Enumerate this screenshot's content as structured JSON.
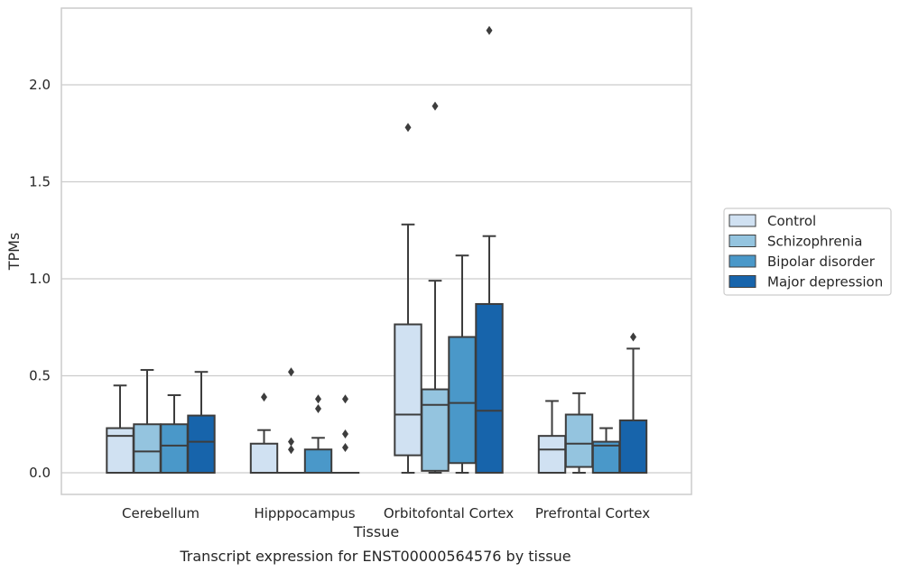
{
  "caption": "Transcript expression for ENST00000564576 by tissue",
  "chart_data": {
    "type": "box",
    "xlabel": "Tissue",
    "ylabel": "TPMs",
    "ylim": [
      -0.11,
      2.41
    ],
    "yticks": [
      0.0,
      0.5,
      1.0,
      1.5,
      2.0
    ],
    "ytick_labels": [
      "0.0",
      "0.5",
      "1.0",
      "1.5",
      "2.0"
    ],
    "grid": "horizontal",
    "legend_position": "right",
    "categories": [
      "Cerebellum",
      "Hipppocampus",
      "Orbitofontal Cortex",
      "Prefrontal Cortex"
    ],
    "series": [
      {
        "name": "Control",
        "color": "#d0e1f2",
        "boxes": [
          {
            "whislo": 0.0,
            "q1": 0.0,
            "med": 0.19,
            "q3": 0.23,
            "whishi": 0.45,
            "fliers": []
          },
          {
            "whislo": 0.0,
            "q1": 0.0,
            "med": 0.0,
            "q3": 0.15,
            "whishi": 0.22,
            "fliers": [
              0.39
            ]
          },
          {
            "whislo": 0.0,
            "q1": 0.09,
            "med": 0.3,
            "q3": 0.765,
            "whishi": 1.28,
            "fliers": [
              1.78
            ]
          },
          {
            "whislo": 0.0,
            "q1": 0.0,
            "med": 0.12,
            "q3": 0.19,
            "whishi": 0.37,
            "fliers": []
          }
        ]
      },
      {
        "name": "Schizophrenia",
        "color": "#94c4df",
        "boxes": [
          {
            "whislo": 0.0,
            "q1": 0.0,
            "med": 0.11,
            "q3": 0.25,
            "whishi": 0.53,
            "fliers": []
          },
          {
            "whislo": 0.0,
            "q1": 0.0,
            "med": 0.0,
            "q3": 0.0,
            "whishi": 0.0,
            "fliers": [
              0.12,
              0.16,
              0.52
            ]
          },
          {
            "whislo": 0.0,
            "q1": 0.01,
            "med": 0.35,
            "q3": 0.43,
            "whishi": 0.99,
            "fliers": [
              1.89
            ]
          },
          {
            "whislo": 0.0,
            "q1": 0.03,
            "med": 0.15,
            "q3": 0.3,
            "whishi": 0.41,
            "fliers": []
          }
        ]
      },
      {
        "name": "Bipolar disorder",
        "color": "#4a98c9",
        "boxes": [
          {
            "whislo": 0.0,
            "q1": 0.0,
            "med": 0.14,
            "q3": 0.25,
            "whishi": 0.4,
            "fliers": []
          },
          {
            "whislo": 0.0,
            "q1": 0.0,
            "med": 0.0,
            "q3": 0.12,
            "whishi": 0.18,
            "fliers": [
              0.33,
              0.38
            ]
          },
          {
            "whislo": 0.0,
            "q1": 0.05,
            "med": 0.36,
            "q3": 0.7,
            "whishi": 1.12,
            "fliers": []
          },
          {
            "whislo": 0.0,
            "q1": 0.0,
            "med": 0.14,
            "q3": 0.16,
            "whishi": 0.23,
            "fliers": []
          }
        ]
      },
      {
        "name": "Major depression",
        "color": "#1764ab",
        "boxes": [
          {
            "whislo": 0.0,
            "q1": 0.0,
            "med": 0.16,
            "q3": 0.295,
            "whishi": 0.52,
            "fliers": []
          },
          {
            "whislo": 0.0,
            "q1": 0.0,
            "med": 0.0,
            "q3": 0.0,
            "whishi": 0.0,
            "fliers": [
              0.13,
              0.2,
              0.38
            ]
          },
          {
            "whislo": 0.0,
            "q1": 0.0,
            "med": 0.32,
            "q3": 0.87,
            "whishi": 1.22,
            "fliers": [
              2.28
            ]
          },
          {
            "whislo": 0.0,
            "q1": 0.0,
            "med": 0.0,
            "q3": 0.27,
            "whishi": 0.64,
            "fliers": [
              0.7
            ]
          }
        ]
      }
    ]
  }
}
